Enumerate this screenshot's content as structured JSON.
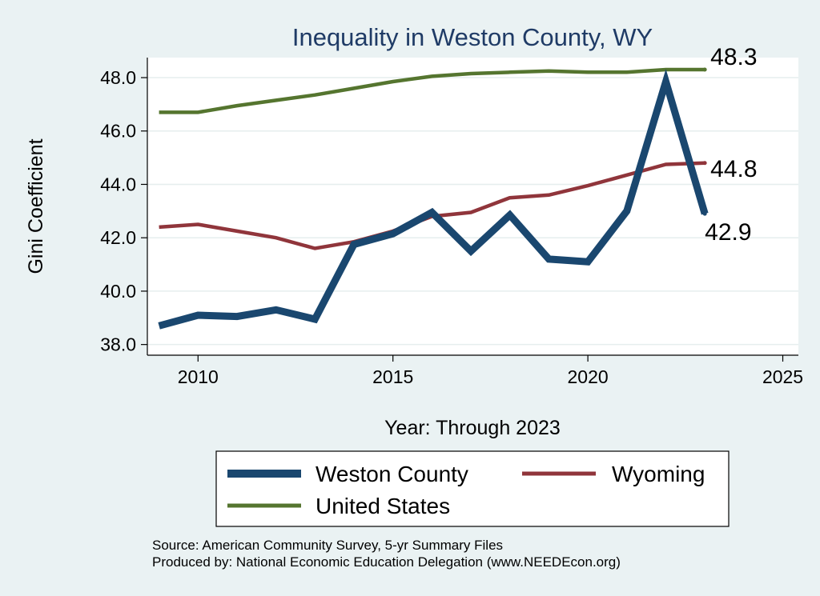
{
  "chart_data": {
    "type": "line",
    "title": "Inequality in Weston County, WY",
    "xlabel": "Year: Through 2023",
    "ylabel": "Gini Coefficient",
    "xlim": [
      2008.7,
      2025.4
    ],
    "ylim": [
      37.6,
      48.75
    ],
    "x_ticks": [
      2010,
      2015,
      2020,
      2025
    ],
    "y_ticks": [
      38,
      40,
      42,
      44,
      46,
      48
    ],
    "y_tick_labels": [
      "38.0",
      "40.0",
      "42.0",
      "44.0",
      "46.0",
      "48.0"
    ],
    "grid": true,
    "legend_position": "bottom",
    "x": [
      2009,
      2010,
      2011,
      2012,
      2013,
      2014,
      2015,
      2016,
      2017,
      2018,
      2019,
      2020,
      2021,
      2022,
      2023
    ],
    "series": [
      {
        "name": "Weston County",
        "color": "#1a476f",
        "values": [
          38.7,
          39.1,
          39.05,
          39.3,
          38.95,
          41.75,
          42.15,
          42.95,
          41.5,
          42.85,
          41.2,
          41.1,
          43.0,
          47.85,
          42.9
        ],
        "end_label": "42.9"
      },
      {
        "name": "Wyoming",
        "color": "#90353b",
        "values": [
          42.4,
          42.5,
          42.25,
          42.0,
          41.6,
          41.85,
          42.25,
          42.8,
          42.95,
          43.5,
          43.6,
          43.95,
          44.35,
          44.75,
          44.8
        ],
        "end_label": "44.8"
      },
      {
        "name": "United States",
        "color": "#55752f",
        "values": [
          46.7,
          46.7,
          46.95,
          47.15,
          47.35,
          47.6,
          47.85,
          48.05,
          48.15,
          48.2,
          48.25,
          48.2,
          48.2,
          48.3,
          48.3
        ],
        "end_label": "48.3"
      }
    ],
    "source_lines": [
      "Source: American Community Survey, 5-yr Summary Files",
      "Produced by: National Economic Education Delegation (www.NEEDEcon.org)"
    ]
  }
}
